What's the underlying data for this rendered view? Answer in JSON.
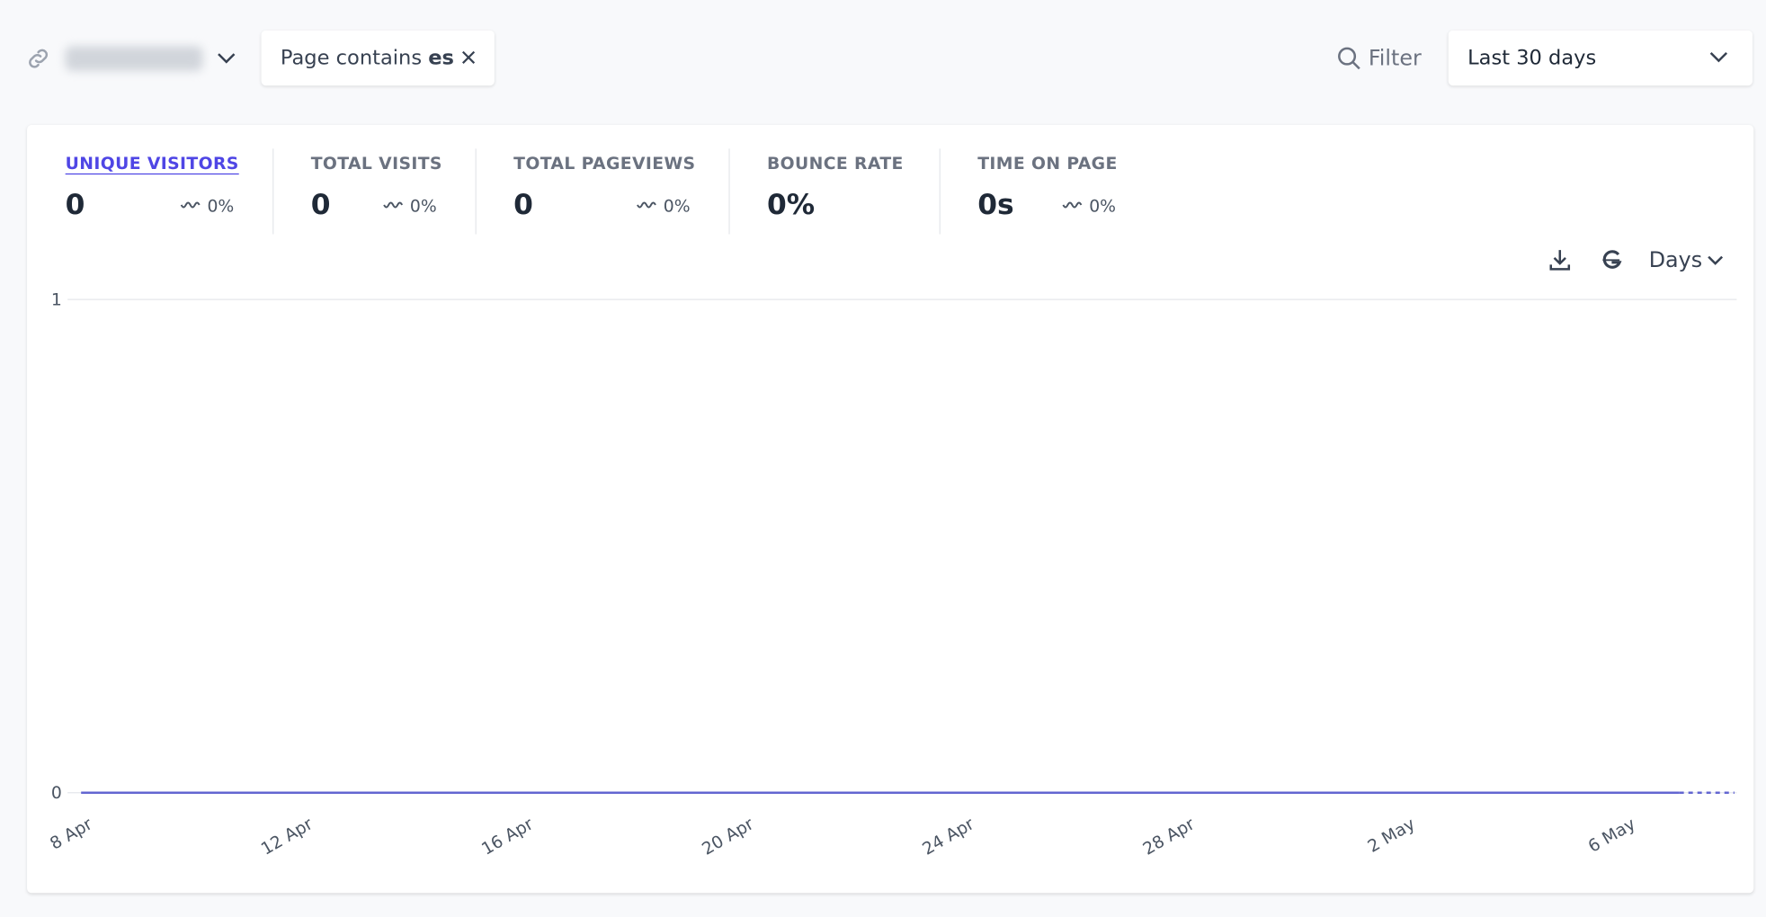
{
  "header": {
    "filter_prefix": "Page contains",
    "filter_value": "es",
    "filter_button": "Filter",
    "period": "Last 30 days"
  },
  "metrics": [
    {
      "label": "UNIQUE VISITORS",
      "value": "0",
      "change": "0%"
    },
    {
      "label": "TOTAL VISITS",
      "value": "0",
      "change": "0%"
    },
    {
      "label": "TOTAL PAGEVIEWS",
      "value": "0",
      "change": "0%"
    },
    {
      "label": "BOUNCE RATE",
      "value": "0%"
    },
    {
      "label": "TIME ON PAGE",
      "value": "0s",
      "change": "0%"
    }
  ],
  "interval": "Days",
  "chart_data": {
    "type": "line",
    "categories": [
      "8 Apr",
      null,
      null,
      null,
      "12 Apr",
      null,
      null,
      null,
      "16 Apr",
      null,
      null,
      null,
      "20 Apr",
      null,
      null,
      null,
      "24 Apr",
      null,
      null,
      null,
      "28 Apr",
      null,
      null,
      null,
      "2 May",
      null,
      null,
      null,
      "6 May",
      null,
      null
    ],
    "series": [
      {
        "name": "Unique visitors",
        "color": "#6366d1",
        "values": [
          0,
          0,
          0,
          0,
          0,
          0,
          0,
          0,
          0,
          0,
          0,
          0,
          0,
          0,
          0,
          0,
          0,
          0,
          0,
          0,
          0,
          0,
          0,
          0,
          0,
          0,
          0,
          0,
          0,
          0,
          0
        ]
      }
    ],
    "ylim": [
      0,
      1
    ],
    "yticks": [
      0,
      1
    ],
    "grid": true
  }
}
